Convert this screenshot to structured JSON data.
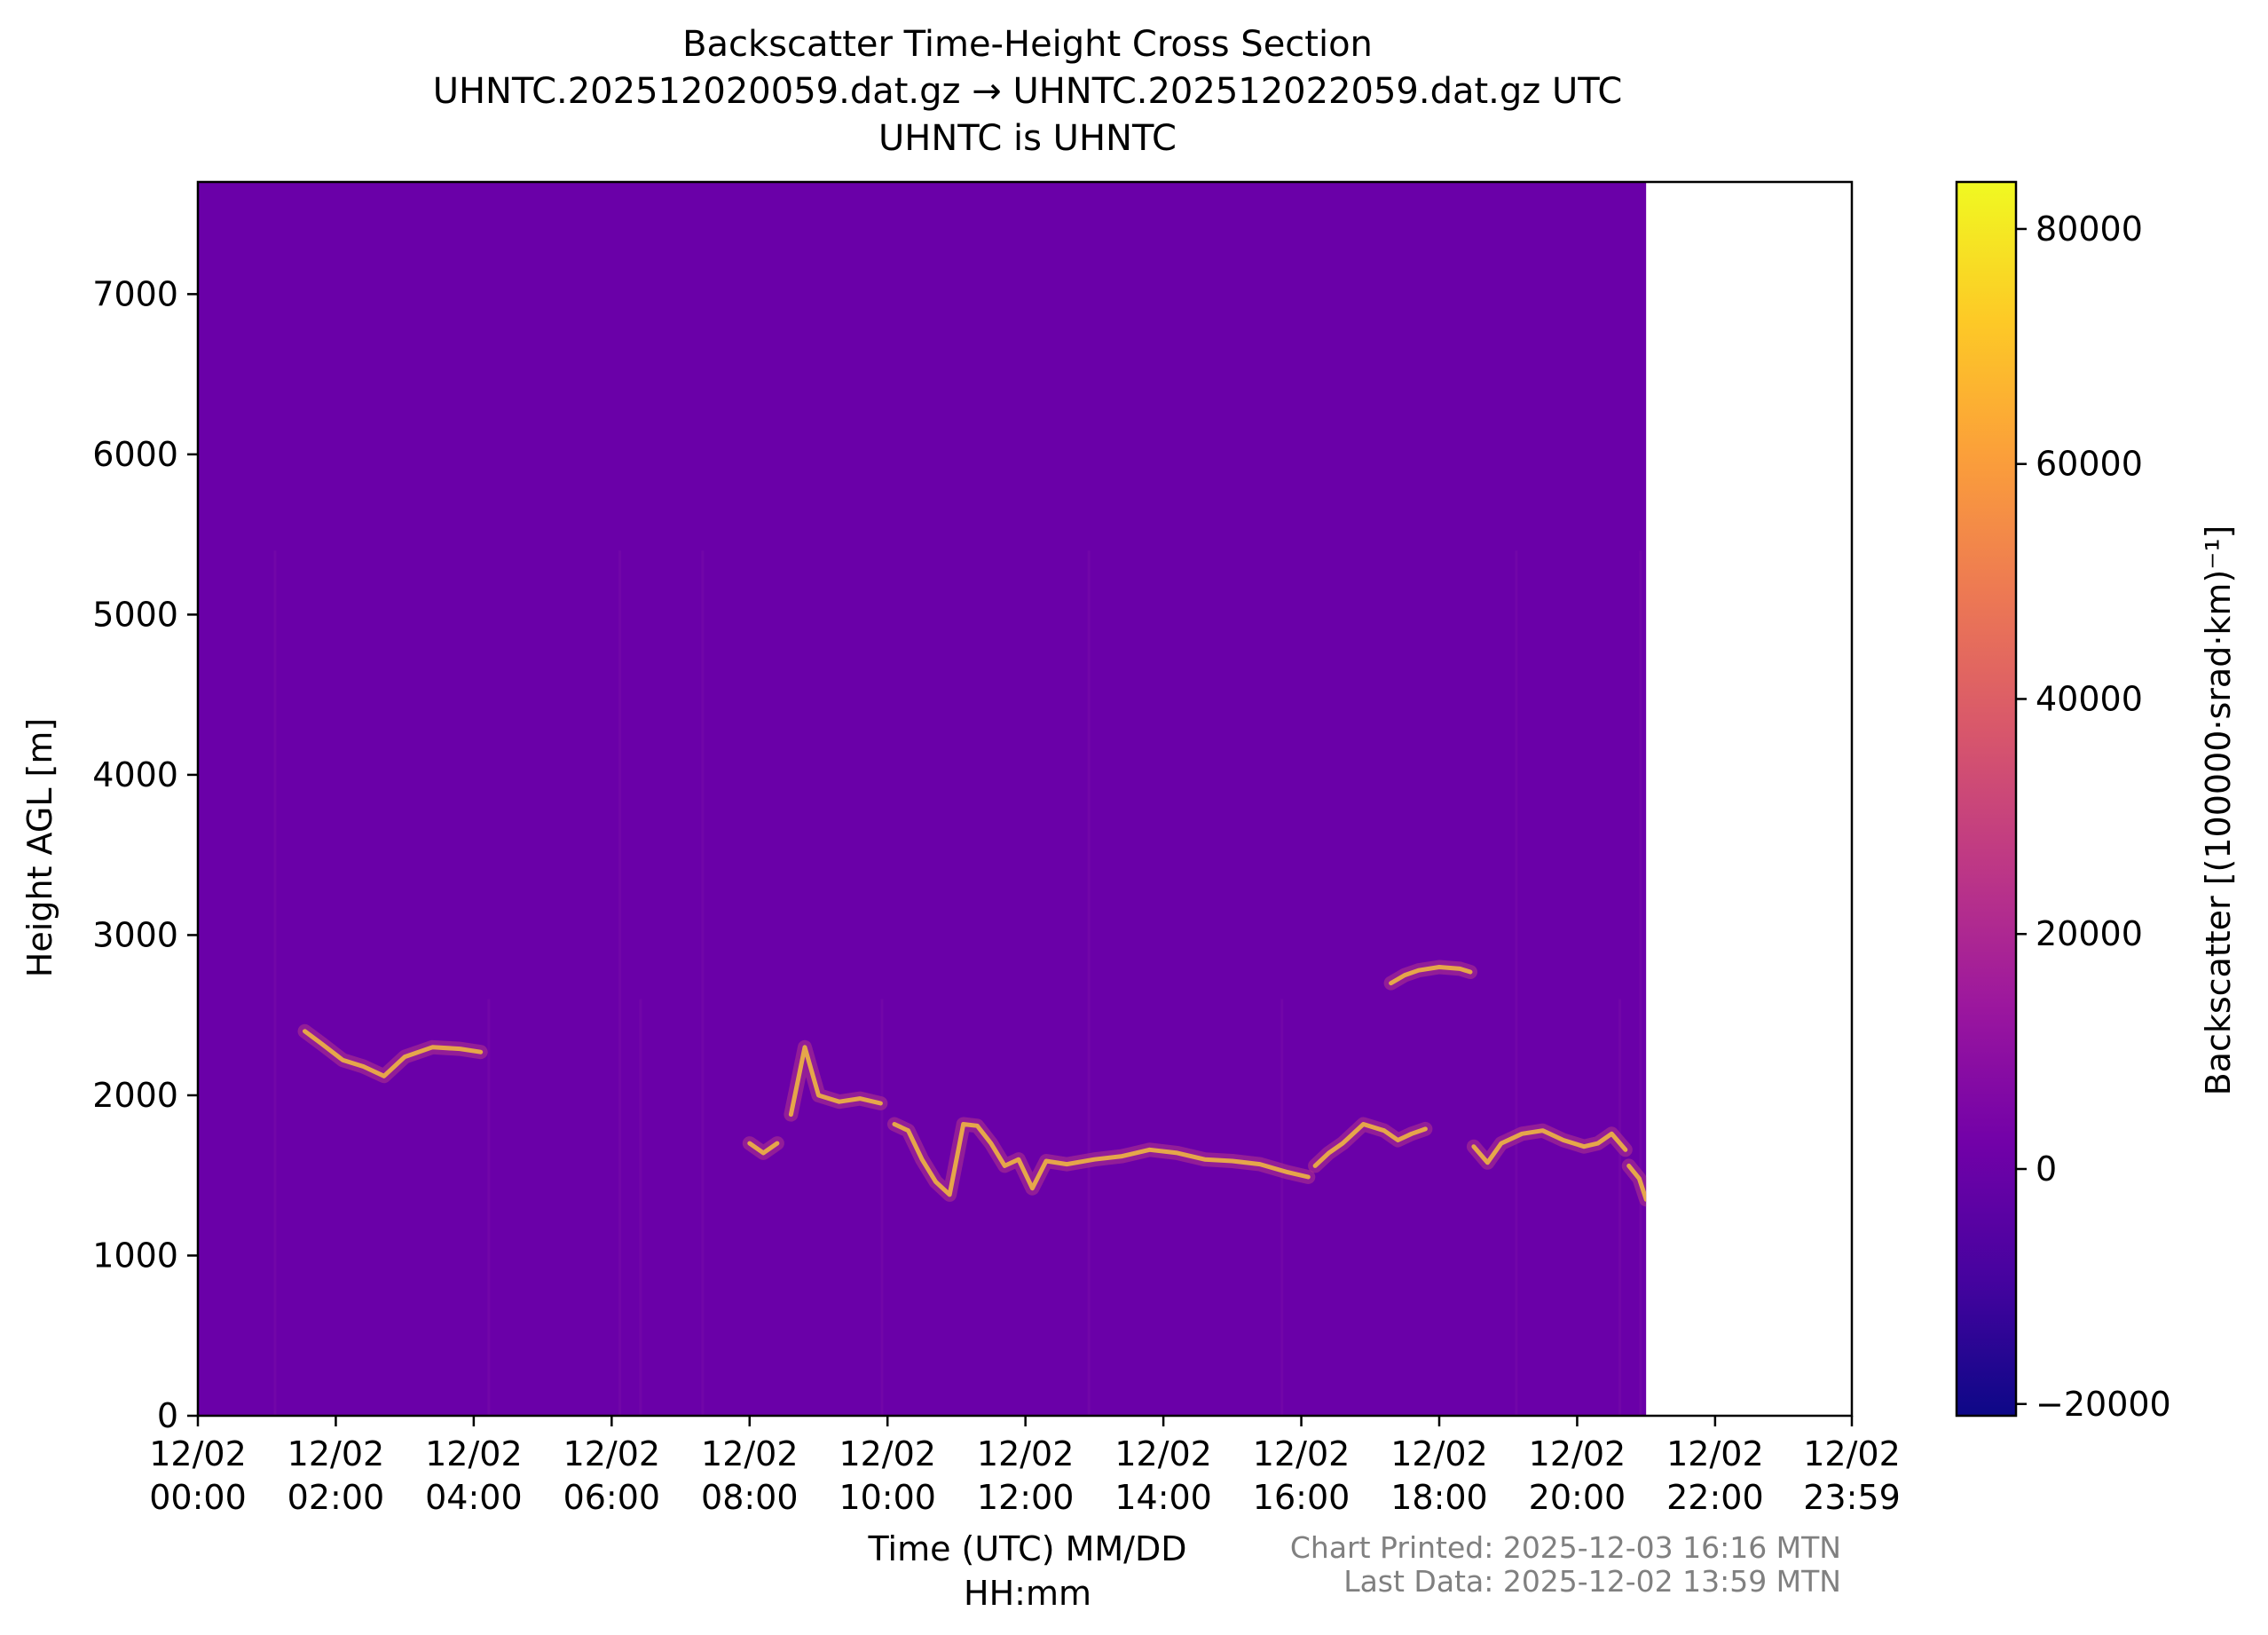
{
  "chart_data": {
    "type": "heatmap",
    "title_lines": [
      "Backscatter Time-Height Cross Section",
      "UHNTC.202512020059.dat.gz → UHNTC.202512022059.dat.gz UTC",
      "UHNTC is UHNTC"
    ],
    "xlabel_lines": [
      "Time (UTC) MM/DD",
      "HH:mm"
    ],
    "ylabel": "Height AGL [m]",
    "colorbar_label": "Backscatter [(100000·srad·km)⁻¹]",
    "xlim_hours": [
      0,
      23.983
    ],
    "ylim": [
      0,
      7700
    ],
    "data_end_hour": 21.0,
    "x_ticks": [
      {
        "hour": 0,
        "date": "12/02",
        "time": "00:00"
      },
      {
        "hour": 2,
        "date": "12/02",
        "time": "02:00"
      },
      {
        "hour": 4,
        "date": "12/02",
        "time": "04:00"
      },
      {
        "hour": 6,
        "date": "12/02",
        "time": "06:00"
      },
      {
        "hour": 8,
        "date": "12/02",
        "time": "08:00"
      },
      {
        "hour": 10,
        "date": "12/02",
        "time": "10:00"
      },
      {
        "hour": 12,
        "date": "12/02",
        "time": "12:00"
      },
      {
        "hour": 14,
        "date": "12/02",
        "time": "14:00"
      },
      {
        "hour": 16,
        "date": "12/02",
        "time": "16:00"
      },
      {
        "hour": 18,
        "date": "12/02",
        "time": "18:00"
      },
      {
        "hour": 20,
        "date": "12/02",
        "time": "20:00"
      },
      {
        "hour": 22,
        "date": "12/02",
        "time": "22:00"
      },
      {
        "hour": 23.983,
        "date": "12/02",
        "time": "23:59"
      }
    ],
    "y_ticks": [
      {
        "value": 0,
        "label": "0"
      },
      {
        "value": 1000,
        "label": "1000"
      },
      {
        "value": 2000,
        "label": "2000"
      },
      {
        "value": 3000,
        "label": "3000"
      },
      {
        "value": 4000,
        "label": "4000"
      },
      {
        "value": 5000,
        "label": "5000"
      },
      {
        "value": 6000,
        "label": "6000"
      },
      {
        "value": 7000,
        "label": "7000"
      }
    ],
    "colorbar": {
      "colormap": "plasma",
      "range": [
        -21000,
        84000
      ],
      "ticks": [
        {
          "value": -20000,
          "label": "−20000"
        },
        {
          "value": 0,
          "label": "0"
        },
        {
          "value": 20000,
          "label": "20000"
        },
        {
          "value": 40000,
          "label": "40000"
        },
        {
          "value": 60000,
          "label": "60000"
        },
        {
          "value": 80000,
          "label": "80000"
        }
      ],
      "stops": [
        "#0d0887",
        "#46039f",
        "#7201a8",
        "#9c179e",
        "#bd3786",
        "#d8576b",
        "#ed7953",
        "#fb9f3a",
        "#fdca26",
        "#f0f921"
      ]
    },
    "background_color": "#6a00a8",
    "cloud_color": "#e6a64a",
    "background_value": 3000,
    "cloud_layers": [
      {
        "points": [
          [
            1.55,
            2400
          ],
          [
            1.8,
            2320
          ],
          [
            2.1,
            2220
          ],
          [
            2.4,
            2180
          ],
          [
            2.7,
            2120
          ],
          [
            3.0,
            2240
          ],
          [
            3.4,
            2300
          ],
          [
            3.8,
            2290
          ],
          [
            4.1,
            2270
          ]
        ]
      },
      {
        "points": [
          [
            8.0,
            1700
          ],
          [
            8.2,
            1640
          ],
          [
            8.4,
            1700
          ]
        ]
      },
      {
        "points": [
          [
            8.6,
            1880
          ],
          [
            8.8,
            2300
          ],
          [
            9.0,
            2000
          ],
          [
            9.3,
            1960
          ],
          [
            9.6,
            1980
          ],
          [
            9.9,
            1950
          ]
        ]
      },
      {
        "points": [
          [
            10.1,
            1820
          ],
          [
            10.3,
            1780
          ],
          [
            10.5,
            1600
          ],
          [
            10.7,
            1460
          ],
          [
            10.9,
            1380
          ],
          [
            11.1,
            1820
          ],
          [
            11.3,
            1810
          ],
          [
            11.5,
            1700
          ],
          [
            11.7,
            1560
          ],
          [
            11.9,
            1600
          ],
          [
            12.1,
            1420
          ],
          [
            12.3,
            1590
          ],
          [
            12.6,
            1570
          ],
          [
            13.0,
            1600
          ],
          [
            13.4,
            1620
          ],
          [
            13.8,
            1660
          ],
          [
            14.2,
            1640
          ],
          [
            14.6,
            1600
          ],
          [
            15.0,
            1590
          ],
          [
            15.4,
            1570
          ],
          [
            15.8,
            1520
          ],
          [
            16.1,
            1490
          ]
        ]
      },
      {
        "points": [
          [
            16.2,
            1560
          ],
          [
            16.4,
            1640
          ],
          [
            16.6,
            1700
          ],
          [
            16.9,
            1820
          ],
          [
            17.2,
            1780
          ],
          [
            17.4,
            1720
          ],
          [
            17.6,
            1760
          ],
          [
            17.8,
            1790
          ]
        ]
      },
      {
        "points": [
          [
            17.3,
            2700
          ],
          [
            17.5,
            2750
          ],
          [
            17.7,
            2780
          ],
          [
            18.0,
            2800
          ],
          [
            18.3,
            2790
          ],
          [
            18.45,
            2770
          ]
        ]
      },
      {
        "points": [
          [
            18.5,
            1680
          ],
          [
            18.7,
            1580
          ],
          [
            18.9,
            1700
          ],
          [
            19.2,
            1760
          ],
          [
            19.5,
            1780
          ],
          [
            19.8,
            1720
          ],
          [
            20.1,
            1680
          ],
          [
            20.3,
            1700
          ],
          [
            20.5,
            1760
          ],
          [
            20.7,
            1660
          ]
        ]
      },
      {
        "points": [
          [
            20.75,
            1560
          ],
          [
            20.9,
            1480
          ],
          [
            21.0,
            1350
          ]
        ]
      }
    ],
    "footer_lines": [
      "Chart Printed: 2025-12-03 16:16 MTN",
      "Last Data: 2025-12-02 13:59 MTN"
    ]
  }
}
